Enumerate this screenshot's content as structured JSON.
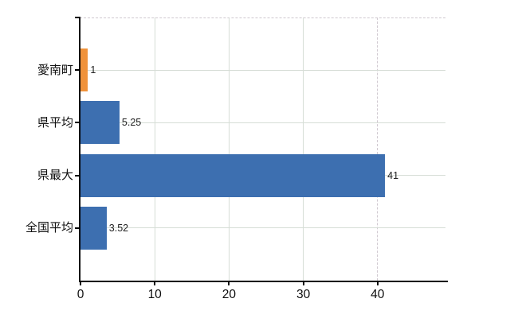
{
  "chart_data": {
    "type": "bar",
    "orientation": "horizontal",
    "title": "",
    "xlabel": "",
    "ylabel": "",
    "categories": [
      "愛南町",
      "県平均",
      "県最大",
      "全国平均"
    ],
    "values": [
      1,
      5.25,
      41,
      3.52
    ],
    "value_labels": [
      "1",
      "5.25",
      "41",
      "3.52"
    ],
    "bar_colors": [
      "#f0923a",
      "#3d6fb0",
      "#3d6fb0",
      "#3d6fb0"
    ],
    "x_ticks": [
      0,
      10,
      20,
      30,
      40
    ],
    "x_tick_labels": [
      "0",
      "10",
      "20",
      "30",
      "40"
    ],
    "dashed_grid_ticks": [
      40
    ],
    "xlim": [
      0,
      49.14
    ],
    "grid": "on",
    "legend": "none"
  },
  "colors": {
    "bar_blue": "#3d6fb0",
    "bar_orange": "#f0923a",
    "axis": "#000000",
    "grid_solid": "#d6ddd6",
    "grid_dashed": "#cfc7cf",
    "tick_text": "#111111",
    "value_text": "#222222",
    "background": "#ffffff"
  }
}
